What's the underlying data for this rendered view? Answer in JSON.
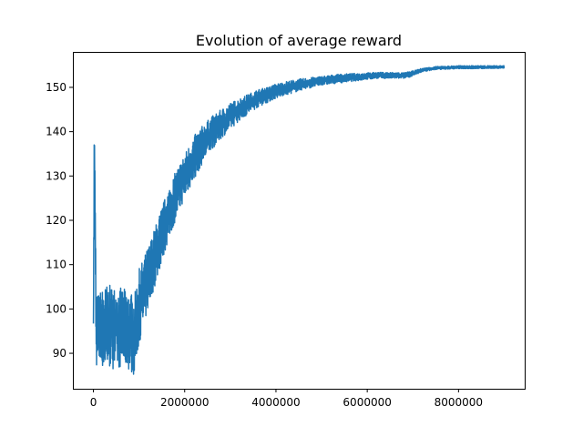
{
  "chart_data": {
    "type": "line",
    "title": "Evolution of average reward",
    "xlabel": "",
    "ylabel": "",
    "xlim": [
      -450000,
      9450000
    ],
    "ylim": [
      82,
      158
    ],
    "xticks": [
      0,
      2000000,
      4000000,
      6000000,
      8000000
    ],
    "xtick_labels": [
      "0",
      "2000000",
      "4000000",
      "6000000",
      "8000000"
    ],
    "yticks": [
      90,
      100,
      110,
      120,
      130,
      140,
      150
    ],
    "ytick_labels": [
      "90",
      "100",
      "110",
      "120",
      "130",
      "140",
      "150"
    ],
    "grid": false,
    "legend": "none",
    "colors": {
      "series": "#1f77b4",
      "axes": "#000000",
      "background": "#ffffff"
    },
    "series": [
      {
        "name": "",
        "envelope_note_free": true,
        "x": [
          0,
          20000,
          60000,
          150000,
          300000,
          500000,
          700000,
          900000,
          1000000,
          1200000,
          1400000,
          1600000,
          1800000,
          2000000,
          2200000,
          2400000,
          2600000,
          2800000,
          3000000,
          3200000,
          3400000,
          3600000,
          3800000,
          4000000,
          4300000,
          4600000,
          5000000,
          5400000,
          5800000,
          6200000,
          6600000,
          6800000,
          7000000,
          7200000,
          7500000,
          8000000,
          8500000,
          9000000
        ],
        "low": [
          89,
          130,
          87,
          87,
          86.5,
          86.5,
          87,
          85,
          92,
          100,
          107,
          114,
          120,
          125,
          129,
          133,
          136,
          138.5,
          140.5,
          142.5,
          144,
          145.5,
          146.5,
          147.5,
          148.5,
          149.5,
          150.5,
          151,
          151.5,
          152,
          152,
          152,
          152.5,
          153.5,
          154,
          154.2,
          154.2,
          154.3
        ],
        "high": [
          103,
          147,
          103,
          104,
          105.5,
          105,
          104.5,
          103,
          109,
          114,
          120,
          126,
          131,
          135,
          139,
          141.5,
          143.5,
          145,
          146.5,
          147.5,
          148.5,
          149.5,
          150,
          150.8,
          151.5,
          152,
          152.5,
          153,
          153.2,
          153.4,
          153.4,
          153.3,
          153.7,
          154.3,
          154.7,
          154.9,
          154.9,
          154.9
        ]
      }
    ]
  }
}
